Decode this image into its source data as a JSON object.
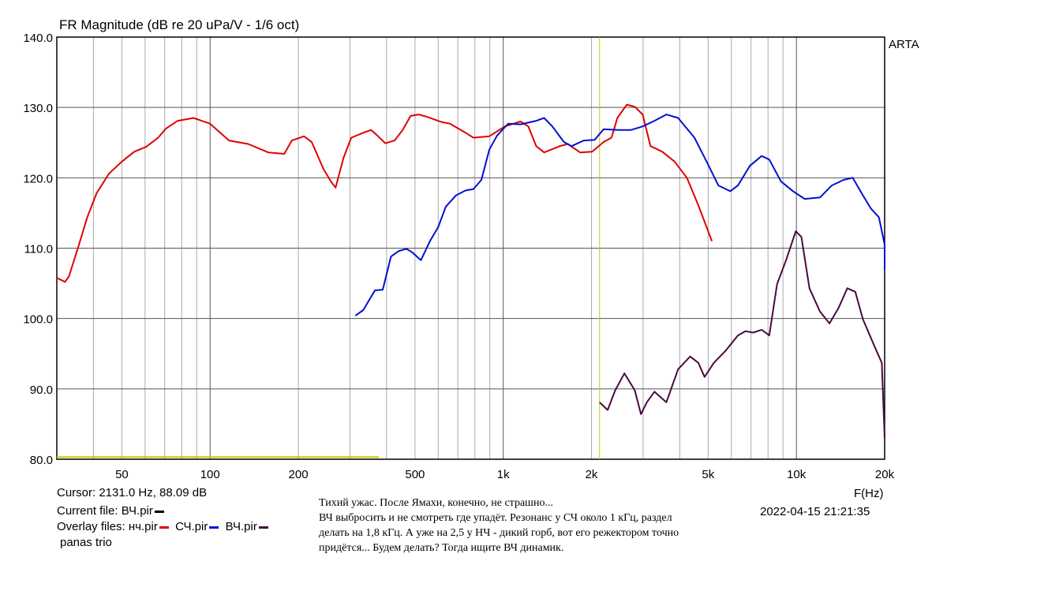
{
  "chart_data": {
    "type": "line",
    "title": "FR Magnitude (dB re 20 uPa/V - 1/6 oct)",
    "xlabel": "F(Hz)",
    "ylabel": "",
    "x_scale": "log",
    "xlim": [
      30,
      20000
    ],
    "ylim": [
      80,
      140
    ],
    "grid": true,
    "x_ticks": [
      {
        "v": 50,
        "l": "50"
      },
      {
        "v": 100,
        "l": "100"
      },
      {
        "v": 200,
        "l": "200"
      },
      {
        "v": 500,
        "l": "500"
      },
      {
        "v": 1000,
        "l": "1k"
      },
      {
        "v": 2000,
        "l": "2k"
      },
      {
        "v": 5000,
        "l": "5k"
      },
      {
        "v": 10000,
        "l": "10k"
      },
      {
        "v": 20000,
        "l": "20k"
      }
    ],
    "y_ticks": [
      {
        "v": 80,
        "l": "80.0"
      },
      {
        "v": 90,
        "l": "90.0"
      },
      {
        "v": 100,
        "l": "100.0"
      },
      {
        "v": 110,
        "l": "110.0"
      },
      {
        "v": 120,
        "l": "120.0"
      },
      {
        "v": 130,
        "l": "130.0"
      },
      {
        "v": 140,
        "l": "140.0"
      }
    ],
    "cursor_hz": 2131.0,
    "series": [
      {
        "name": "нч.pir",
        "color": "#e00000",
        "points": [
          [
            30,
            105.8
          ],
          [
            32,
            105.2
          ],
          [
            33,
            106
          ],
          [
            35.7,
            110.5
          ],
          [
            38.1,
            114.4
          ],
          [
            41,
            117.8
          ],
          [
            45.2,
            120.6
          ],
          [
            50,
            122.3
          ],
          [
            55.1,
            123.7
          ],
          [
            60.5,
            124.4
          ],
          [
            66.5,
            125.7
          ],
          [
            70.7,
            127
          ],
          [
            77.5,
            128.1
          ],
          [
            87.8,
            128.5
          ],
          [
            100,
            127.7
          ],
          [
            116,
            125.3
          ],
          [
            135,
            124.8
          ],
          [
            158,
            123.6
          ],
          [
            179,
            123.4
          ],
          [
            190,
            125.3
          ],
          [
            209,
            125.9
          ],
          [
            222,
            125.1
          ],
          [
            244,
            121.2
          ],
          [
            260,
            119.3
          ],
          [
            268,
            118.6
          ],
          [
            285,
            122.8
          ],
          [
            303,
            125.7
          ],
          [
            333,
            126.4
          ],
          [
            354,
            126.8
          ],
          [
            372,
            126
          ],
          [
            396,
            124.9
          ],
          [
            426,
            125.3
          ],
          [
            454,
            126.8
          ],
          [
            483,
            128.8
          ],
          [
            514,
            129
          ],
          [
            547,
            128.7
          ],
          [
            619,
            127.9
          ],
          [
            658,
            127.7
          ],
          [
            744,
            126.4
          ],
          [
            791,
            125.7
          ],
          [
            896,
            125.9
          ],
          [
            1013,
            127.3
          ],
          [
            1145,
            128
          ],
          [
            1218,
            127.3
          ],
          [
            1296,
            124.5
          ],
          [
            1379,
            123.6
          ],
          [
            1560,
            124.5
          ],
          [
            1661,
            124.8
          ],
          [
            1830,
            123.6
          ],
          [
            2010,
            123.7
          ],
          [
            2200,
            125.1
          ],
          [
            2340,
            125.7
          ],
          [
            2450,
            128.5
          ],
          [
            2640,
            130.4
          ],
          [
            2810,
            130.1
          ],
          [
            2990,
            129
          ],
          [
            3180,
            124.5
          ],
          [
            3490,
            123.7
          ],
          [
            3840,
            122.3
          ],
          [
            4230,
            120
          ],
          [
            4630,
            116.1
          ],
          [
            5150,
            111
          ]
        ]
      },
      {
        "name": "СЧ.pir",
        "color": "#0010d0",
        "points": [
          [
            313,
            100.4
          ],
          [
            333,
            101.2
          ],
          [
            365,
            104
          ],
          [
            388,
            104.1
          ],
          [
            414,
            108.8
          ],
          [
            440,
            109.6
          ],
          [
            468,
            109.9
          ],
          [
            489,
            109.4
          ],
          [
            524,
            108.3
          ],
          [
            564,
            111.1
          ],
          [
            600,
            113
          ],
          [
            637,
            115.9
          ],
          [
            690,
            117.5
          ],
          [
            744,
            118.2
          ],
          [
            791,
            118.4
          ],
          [
            842,
            119.7
          ],
          [
            896,
            124
          ],
          [
            953,
            126
          ],
          [
            1040,
            127.7
          ],
          [
            1145,
            127.6
          ],
          [
            1296,
            128.1
          ],
          [
            1379,
            128.5
          ],
          [
            1470,
            127.3
          ],
          [
            1610,
            125.1
          ],
          [
            1710,
            124.5
          ],
          [
            1880,
            125.3
          ],
          [
            2050,
            125.4
          ],
          [
            2200,
            126.9
          ],
          [
            2480,
            126.8
          ],
          [
            2730,
            126.8
          ],
          [
            2990,
            127.3
          ],
          [
            3280,
            128.1
          ],
          [
            3600,
            129
          ],
          [
            3950,
            128.5
          ],
          [
            4490,
            125.7
          ],
          [
            4940,
            122.3
          ],
          [
            5420,
            118.9
          ],
          [
            5950,
            118.1
          ],
          [
            6320,
            118.9
          ],
          [
            6940,
            121.7
          ],
          [
            7610,
            123.1
          ],
          [
            8080,
            122.6
          ],
          [
            8860,
            119.5
          ],
          [
            9730,
            118.1
          ],
          [
            10670,
            117
          ],
          [
            12030,
            117.2
          ],
          [
            13200,
            118.9
          ],
          [
            14470,
            119.7
          ],
          [
            15560,
            120
          ],
          [
            16870,
            117.5
          ],
          [
            17980,
            115.6
          ],
          [
            19120,
            114.4
          ],
          [
            20000,
            110.5
          ],
          [
            20000,
            107
          ]
        ]
      },
      {
        "name": "ВЧ.pir",
        "color": "#4a0a40",
        "points": [
          [
            2130,
            88.1
          ],
          [
            2270,
            87
          ],
          [
            2410,
            89.8
          ],
          [
            2590,
            92.2
          ],
          [
            2810,
            89.8
          ],
          [
            2950,
            86.4
          ],
          [
            3090,
            88.1
          ],
          [
            3280,
            89.6
          ],
          [
            3600,
            88.1
          ],
          [
            3950,
            92.8
          ],
          [
            4340,
            94.6
          ],
          [
            4630,
            93.7
          ],
          [
            4860,
            91.7
          ],
          [
            5230,
            93.7
          ],
          [
            5730,
            95.4
          ],
          [
            6320,
            97.6
          ],
          [
            6700,
            98.2
          ],
          [
            7120,
            98
          ],
          [
            7610,
            98.4
          ],
          [
            8080,
            97.6
          ],
          [
            8590,
            104.9
          ],
          [
            9220,
            108.3
          ],
          [
            9950,
            112.4
          ],
          [
            10400,
            111.6
          ],
          [
            11080,
            104.3
          ],
          [
            12030,
            101
          ],
          [
            12970,
            99.3
          ],
          [
            13930,
            101.5
          ],
          [
            14920,
            104.3
          ],
          [
            15880,
            103.8
          ],
          [
            16870,
            99.9
          ],
          [
            18530,
            95.9
          ],
          [
            19560,
            93.7
          ],
          [
            20000,
            83
          ]
        ]
      },
      {
        "color": "#c8c800",
        "points": [
          [
            30,
            80.3
          ],
          [
            377,
            80.3
          ]
        ]
      }
    ]
  },
  "brand": "ARTA",
  "info": {
    "cursor": "Cursor: 2131.0 Hz, 88.09 dB",
    "current_file": "Current file: ВЧ.pir",
    "current_color": "#000000",
    "overlay_label": "Overlay files:",
    "overlays": [
      {
        "name": "нч.pir",
        "color": "#e00000"
      },
      {
        "name": "СЧ.pir",
        "color": "#0010d0"
      },
      {
        "name": "ВЧ.pir",
        "color": "#4a0a40"
      }
    ],
    "project": "panas trio",
    "date": "2022-04-15  21:21:35"
  },
  "note": "Тихий ужас.  После Ямахи, конечно, не страшно...\nВЧ выбросить и не смотреть где упадёт. Резонанс у СЧ около 1 кГц, раздел\nделать на 1,8 кГц. А уже на 2,5 у НЧ - дикий горб, вот его режектором точно\nпридётся... Будем делать? Тогда ищите ВЧ динамик."
}
